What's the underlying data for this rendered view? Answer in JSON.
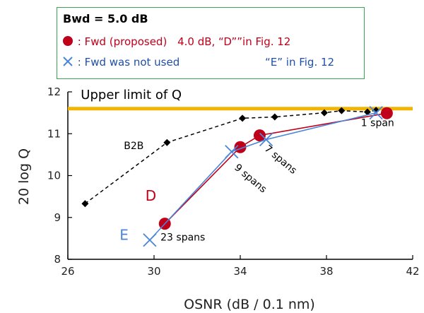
{
  "legend": {
    "title": "Bwd = 5.0 dB",
    "fwd_label": ": Fwd (proposed)",
    "fwd_value": "4.0 dB, “D””in Fig. 12",
    "nofwd_label": ": Fwd was not used",
    "nofwd_note": "“E” in Fig. 12",
    "fwd_color": "#c0001a",
    "nofwd_color": "#4a86d8"
  },
  "chart_data": {
    "type": "line",
    "xlabel": "OSNR (dB / 0.1 nm)",
    "ylabel": "20 log Q",
    "xlim": [
      26,
      42
    ],
    "ylim": [
      8,
      12
    ],
    "xticks": [
      26,
      30,
      34,
      38,
      42
    ],
    "yticks": [
      8,
      9,
      10,
      11,
      12
    ],
    "grid": false,
    "reference_line": {
      "label": "Upper limit of Q",
      "y": 11.6,
      "color": "#f2b400"
    },
    "series": [
      {
        "name": "B2B",
        "style": "dashed",
        "marker": "diamond",
        "color": "#000000",
        "x": [
          26.8,
          30.6,
          34.1,
          35.6,
          37.9,
          38.7,
          39.9,
          40.3
        ],
        "y": [
          9.33,
          10.79,
          11.37,
          11.4,
          11.5,
          11.55,
          11.52,
          11.56
        ]
      },
      {
        "name": "Fwd (proposed)",
        "style": "solid",
        "marker": "circle",
        "color": "#c0001a",
        "x": [
          30.5,
          34.0,
          34.9,
          40.8
        ],
        "y": [
          8.85,
          10.68,
          10.96,
          11.49
        ]
      },
      {
        "name": "Fwd was not used",
        "style": "solid",
        "marker": "x",
        "color": "#4a86d8",
        "x": [
          29.8,
          33.6,
          35.2,
          40.3
        ],
        "y": [
          8.46,
          10.57,
          10.86,
          11.5
        ]
      }
    ],
    "annotations": [
      {
        "text": "Upper limit of Q",
        "x": 26.6,
        "y": 11.83,
        "color": "#000000",
        "size": 18
      },
      {
        "text": "B2B",
        "x": 28.6,
        "y": 10.63,
        "color": "#000000",
        "size": 14
      },
      {
        "text": "1 span",
        "x": 39.6,
        "y": 11.18,
        "color": "#000000",
        "size": 14
      },
      {
        "text": "7 spans",
        "x": 35.1,
        "y": 10.62,
        "color": "#000000",
        "size": 14,
        "rotate": 40
      },
      {
        "text": "9 spans",
        "x": 33.7,
        "y": 10.17,
        "color": "#000000",
        "size": 14,
        "rotate": 40
      },
      {
        "text": "23 spans",
        "x": 30.3,
        "y": 8.45,
        "color": "#000000",
        "size": 14
      },
      {
        "text": "D",
        "x": 29.6,
        "y": 9.4,
        "color": "#c0001a",
        "size": 20
      },
      {
        "text": "E",
        "x": 28.4,
        "y": 8.46,
        "color": "#4a86d8",
        "size": 20
      }
    ]
  }
}
